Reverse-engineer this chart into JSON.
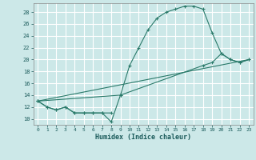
{
  "title": "",
  "xlabel": "Humidex (Indice chaleur)",
  "ylabel": "",
  "bg_color": "#cce8e8",
  "grid_color": "#ffffff",
  "line_color": "#2a7a6a",
  "xlim": [
    -0.5,
    23.5
  ],
  "ylim": [
    9,
    29.5
  ],
  "xticks": [
    0,
    1,
    2,
    3,
    4,
    5,
    6,
    7,
    8,
    9,
    10,
    11,
    12,
    13,
    14,
    15,
    16,
    17,
    18,
    19,
    20,
    21,
    22,
    23
  ],
  "yticks": [
    10,
    12,
    14,
    16,
    18,
    20,
    22,
    24,
    26,
    28
  ],
  "series1_x": [
    0,
    1,
    2,
    3,
    4,
    5,
    6,
    7,
    8
  ],
  "series1_y": [
    13,
    12,
    11.5,
    12,
    11,
    11,
    11,
    11,
    11
  ],
  "series2_x": [
    0,
    1,
    2,
    3,
    4,
    5,
    6,
    7,
    8,
    9,
    10,
    11,
    12,
    13,
    14,
    15,
    16,
    17,
    18,
    19,
    20,
    21,
    22,
    23
  ],
  "series2_y": [
    13,
    12,
    11.5,
    12,
    11,
    11,
    11,
    11,
    9.5,
    14,
    19,
    22,
    25,
    27,
    28,
    28.5,
    29,
    29,
    28.5,
    24.5,
    21,
    20,
    19.5,
    20
  ],
  "series3_x": [
    0,
    9,
    18,
    19,
    20,
    21,
    22,
    23
  ],
  "series3_y": [
    13,
    14,
    19,
    19.5,
    21,
    20,
    19.5,
    20
  ],
  "series4_x": [
    0,
    23
  ],
  "series4_y": [
    13,
    20
  ],
  "font_family": "monospace"
}
